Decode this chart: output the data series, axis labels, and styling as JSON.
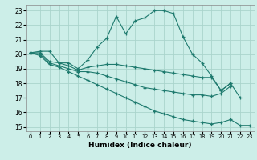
{
  "xlabel": "Humidex (Indice chaleur)",
  "background_color": "#cceee8",
  "grid_color": "#aad4cc",
  "line_color": "#1e7a6e",
  "xlim": [
    -0.5,
    23.5
  ],
  "ylim": [
    14.7,
    23.4
  ],
  "yticks": [
    15,
    16,
    17,
    18,
    19,
    20,
    21,
    22,
    23
  ],
  "xticks": [
    0,
    1,
    2,
    3,
    4,
    5,
    6,
    7,
    8,
    9,
    10,
    11,
    12,
    13,
    14,
    15,
    16,
    17,
    18,
    19,
    20,
    21,
    22,
    23
  ],
  "lines": [
    {
      "x": [
        0,
        1,
        2,
        3,
        4,
        5,
        6,
        7,
        8,
        9,
        10,
        11,
        12,
        13,
        14,
        15,
        16,
        17,
        18,
        19,
        20,
        21,
        22
      ],
      "y": [
        20.1,
        20.2,
        20.2,
        19.4,
        19.4,
        19.0,
        19.6,
        20.5,
        21.1,
        22.6,
        21.4,
        22.3,
        22.5,
        23.0,
        23.0,
        22.8,
        21.2,
        20.0,
        19.4,
        18.5,
        17.5,
        18.0,
        17.0
      ]
    },
    {
      "x": [
        0,
        1,
        2,
        3,
        4,
        5,
        6,
        7,
        8,
        9,
        10,
        11,
        12,
        13,
        14,
        15,
        16,
        17,
        18,
        19,
        20,
        21
      ],
      "y": [
        20.1,
        20.1,
        19.5,
        19.4,
        19.2,
        18.9,
        19.1,
        19.2,
        19.3,
        19.3,
        19.2,
        19.1,
        19.0,
        18.9,
        18.8,
        18.7,
        18.6,
        18.5,
        18.4,
        18.4,
        17.5,
        18.0
      ]
    },
    {
      "x": [
        0,
        1,
        2,
        3,
        4,
        5,
        6,
        7,
        8,
        9,
        10,
        11,
        12,
        13,
        14,
        15,
        16,
        17,
        18,
        19,
        20,
        21
      ],
      "y": [
        20.1,
        20.0,
        19.4,
        19.2,
        19.0,
        18.8,
        18.8,
        18.7,
        18.5,
        18.3,
        18.1,
        17.9,
        17.7,
        17.6,
        17.5,
        17.4,
        17.3,
        17.2,
        17.2,
        17.1,
        17.3,
        17.8
      ]
    },
    {
      "x": [
        0,
        1,
        2,
        3,
        4,
        5,
        6,
        7,
        8,
        9,
        10,
        11,
        12,
        13,
        14,
        15,
        16,
        17,
        18,
        19,
        20,
        21,
        22,
        23
      ],
      "y": [
        20.1,
        19.9,
        19.3,
        19.1,
        18.8,
        18.5,
        18.2,
        17.9,
        17.6,
        17.3,
        17.0,
        16.7,
        16.4,
        16.1,
        15.9,
        15.7,
        15.5,
        15.4,
        15.3,
        15.2,
        15.3,
        15.5,
        15.1,
        15.1
      ]
    }
  ]
}
